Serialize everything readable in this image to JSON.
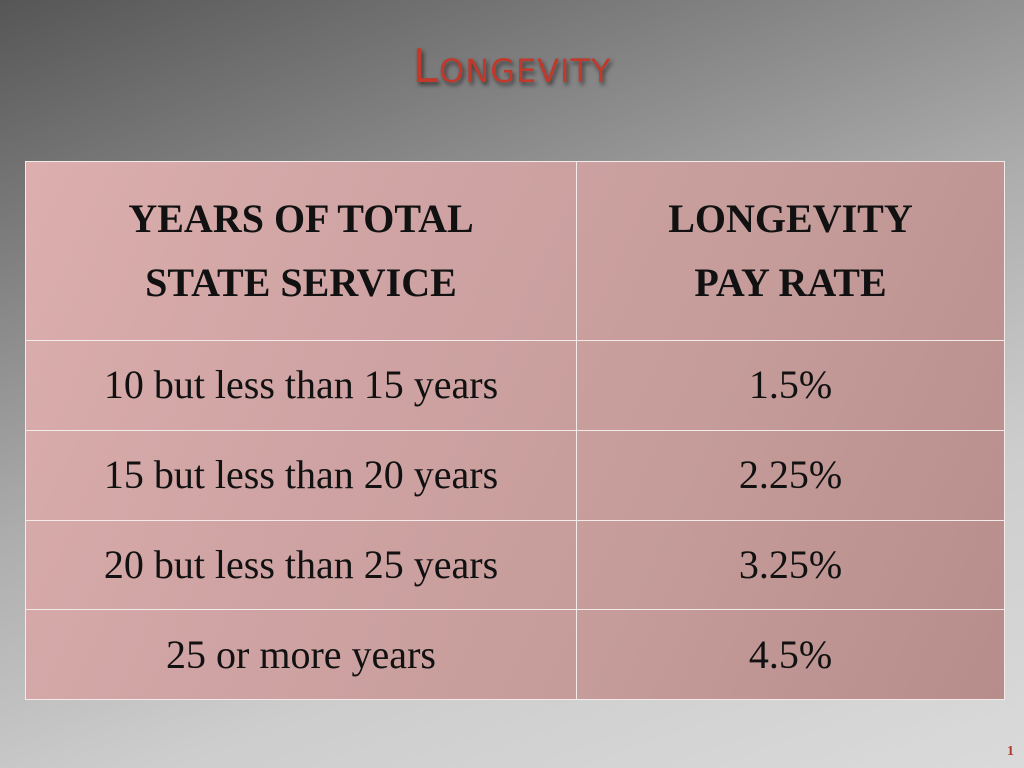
{
  "title": "Longevity",
  "table": {
    "headers": [
      [
        "YEARS OF TOTAL",
        "STATE SERVICE"
      ],
      [
        "LONGEVITY",
        "PAY RATE"
      ]
    ],
    "rows": [
      [
        "10 but less than 15 years",
        "1.5%"
      ],
      [
        "15 but less than 20 years",
        "2.25%"
      ],
      [
        "20 but less than 25 years",
        "3.25%"
      ],
      [
        "25 or more years",
        "4.5%"
      ]
    ]
  },
  "page_number": "1",
  "colors": {
    "title": "#c0392b",
    "table_fill": "#cfa3a3",
    "grid_lines": "#f3eaea"
  }
}
